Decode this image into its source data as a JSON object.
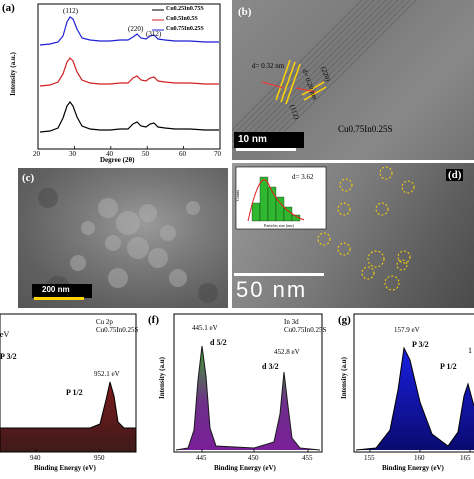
{
  "panel_a": {
    "label": "(a)",
    "ylabel": "Intensity (a.u.)",
    "xlabel": "Degree (2θ)",
    "xticks": [
      "20",
      "30",
      "40",
      "50",
      "60",
      "70"
    ],
    "peaks": [
      "(112)",
      "(220)",
      "(312)"
    ],
    "legend": [
      "Cu0.25In0.75S",
      "Cu0.5In0.5S",
      "Cu0.75In0.25S"
    ],
    "colors": [
      "#1f1fd6",
      "#d11f1f",
      "#000000"
    ]
  },
  "panel_b": {
    "label": "(b)",
    "d1": "d= 0.32 nm",
    "d2": "d= 0.20 nm",
    "plane1": "(112)",
    "plane2": "(220)",
    "scale": "10 nm",
    "material": "Cu0.75In0.25S"
  },
  "panel_c": {
    "label": "(c)",
    "scale": "200 nm"
  },
  "panel_d": {
    "label": "(d)",
    "scale": "50 nm",
    "inset_text": "d= 3.62",
    "inset_ylabel": "Counts",
    "inset_xlabel": "Particles size (nm)"
  },
  "panel_e": {
    "label_fragment": "eV",
    "title": "Cu 2p",
    "material": "Cu0.75In0.25S",
    "p32": "P 3/2",
    "p12": "P 1/2",
    "peak_label": "952.1 eV",
    "xticks": [
      "940",
      "950"
    ],
    "xlabel": "Binding Energy (eV)"
  },
  "panel_f": {
    "label": "(f)",
    "title": "In 3d",
    "material": "Cu0.75In0.25S",
    "peak1": "445.1 eV",
    "peak2": "452.8 eV",
    "d52": "d 5/2",
    "d32": "d 3/2",
    "ylabel": "Intensity (a.u)",
    "xticks": [
      "445",
      "450",
      "455"
    ],
    "xlabel": "Binding Energy (eV)"
  },
  "panel_g": {
    "label": "(g)",
    "peak": "157.9 eV",
    "p32": "P 3/2",
    "p12": "P 1/2",
    "fragment": "1",
    "ylabel": "Intensity (a.u)",
    "xticks": [
      "155",
      "160",
      "165"
    ],
    "xlabel": "Binding Energy (eV)"
  }
}
